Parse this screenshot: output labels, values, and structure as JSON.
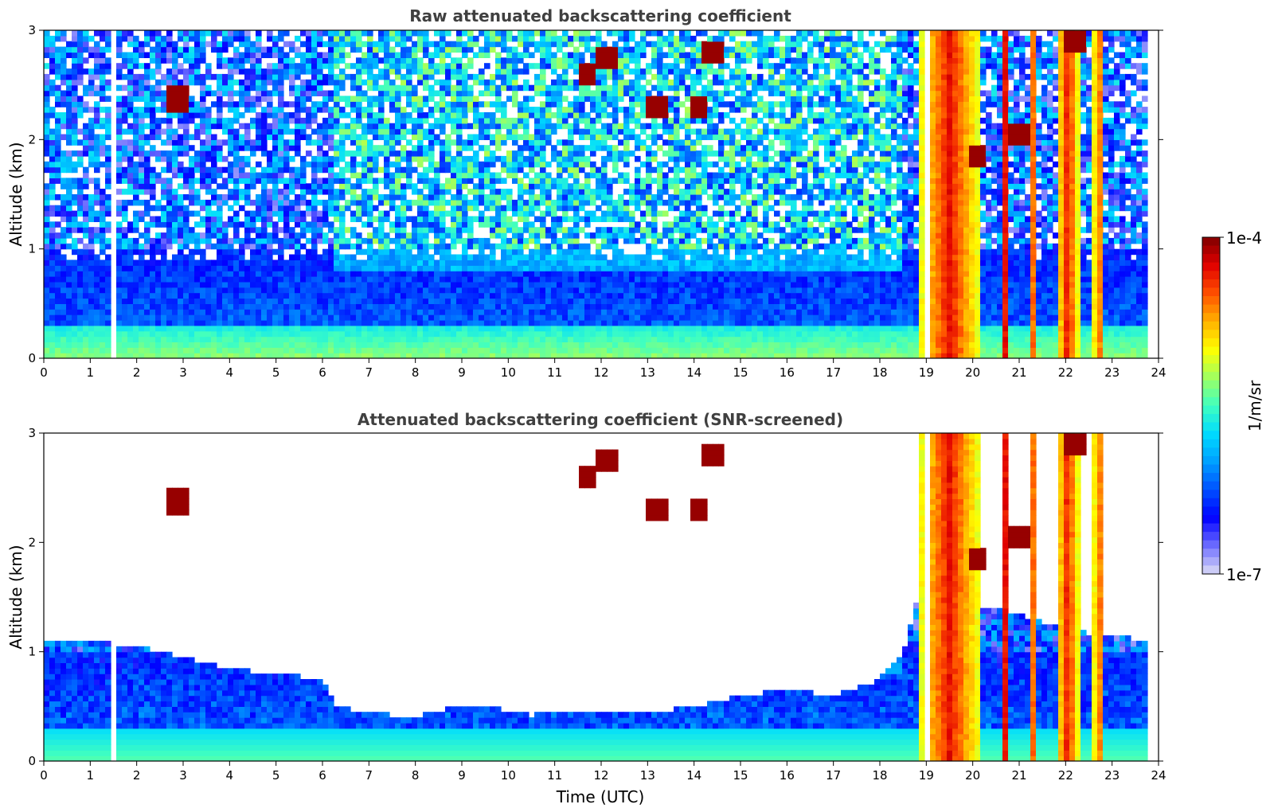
{
  "chart_data": [
    {
      "type": "heatmap",
      "title": "Raw attenuated backscattering coefficient",
      "xlabel": "",
      "ylabel": "Altitude (km)",
      "xlim": [
        0,
        24
      ],
      "ylim": [
        0,
        3
      ],
      "xticks": [
        0,
        1,
        2,
        3,
        4,
        5,
        6,
        7,
        8,
        9,
        10,
        11,
        12,
        13,
        14,
        15,
        16,
        17,
        18,
        19,
        20,
        21,
        22,
        23,
        24
      ],
      "yticks": [
        0,
        1,
        2,
        3
      ],
      "screened": false,
      "data_gaps_utc": [
        [
          1.45,
          1.55
        ],
        [
          18.95,
          19.02
        ]
      ],
      "features": {
        "aerosol_layer_top_km": 0.3,
        "high_backscatter_columns_utc": [
          [
            18.8,
            20.2
          ],
          [
            20.6,
            20.8
          ],
          [
            21.2,
            21.35
          ],
          [
            21.8,
            22.3
          ],
          [
            22.6,
            22.8
          ]
        ],
        "clouds": [
          {
            "t": 2.9,
            "alt_km": 2.37
          },
          {
            "t": 11.7,
            "alt_km": 2.6
          },
          {
            "t": 12.1,
            "alt_km": 2.75
          },
          {
            "t": 13.2,
            "alt_km": 2.3
          },
          {
            "t": 14.1,
            "alt_km": 2.3
          },
          {
            "t": 14.4,
            "alt_km": 2.8
          },
          {
            "t": 20.1,
            "alt_km": 1.85
          },
          {
            "t": 21.0,
            "alt_km": 2.05
          },
          {
            "t": 22.2,
            "alt_km": 2.9
          }
        ]
      }
    },
    {
      "type": "heatmap",
      "title": "Attenuated backscattering coefficient (SNR-screened)",
      "xlabel": "Time (UTC)",
      "ylabel": "Altitude (km)",
      "xlim": [
        0,
        24
      ],
      "ylim": [
        0,
        3
      ],
      "xticks": [
        0,
        1,
        2,
        3,
        4,
        5,
        6,
        7,
        8,
        9,
        10,
        11,
        12,
        13,
        14,
        15,
        16,
        17,
        18,
        19,
        20,
        21,
        22,
        23,
        24
      ],
      "yticks": [
        0,
        1,
        2,
        3
      ],
      "screened": true,
      "boundary_layer_top_km": [
        [
          0,
          1.1
        ],
        [
          1,
          1.1
        ],
        [
          2,
          1.05
        ],
        [
          3,
          0.95
        ],
        [
          4,
          0.85
        ],
        [
          5,
          0.8
        ],
        [
          6,
          0.75
        ],
        [
          6.3,
          0.5
        ],
        [
          7,
          0.45
        ],
        [
          8,
          0.4
        ],
        [
          8.8,
          0.5
        ],
        [
          9.5,
          0.5
        ],
        [
          10.5,
          0.42
        ],
        [
          11,
          0.45
        ],
        [
          12,
          0.45
        ],
        [
          13,
          0.45
        ],
        [
          14,
          0.5
        ],
        [
          15,
          0.6
        ],
        [
          16,
          0.65
        ],
        [
          17,
          0.6
        ],
        [
          18,
          0.75
        ],
        [
          18.5,
          1.0
        ],
        [
          18.8,
          1.5
        ],
        [
          20.5,
          1.4
        ],
        [
          22,
          1.2
        ],
        [
          23,
          1.15
        ],
        [
          23.8,
          1.1
        ]
      ]
    }
  ],
  "colorbar": {
    "label": "1/m/sr",
    "max_label": "1e-4",
    "min_label": "1e-7",
    "scale": "log",
    "range": [
      1e-07,
      0.0001
    ],
    "colormap": "jet",
    "colors": [
      "#dcdcf5",
      "#6e6eff",
      "#0000ff",
      "#0050ff",
      "#00a0ff",
      "#00dcff",
      "#40ffc0",
      "#a0ff60",
      "#ffff00",
      "#ffb000",
      "#ff5000",
      "#e00000",
      "#800000"
    ]
  }
}
